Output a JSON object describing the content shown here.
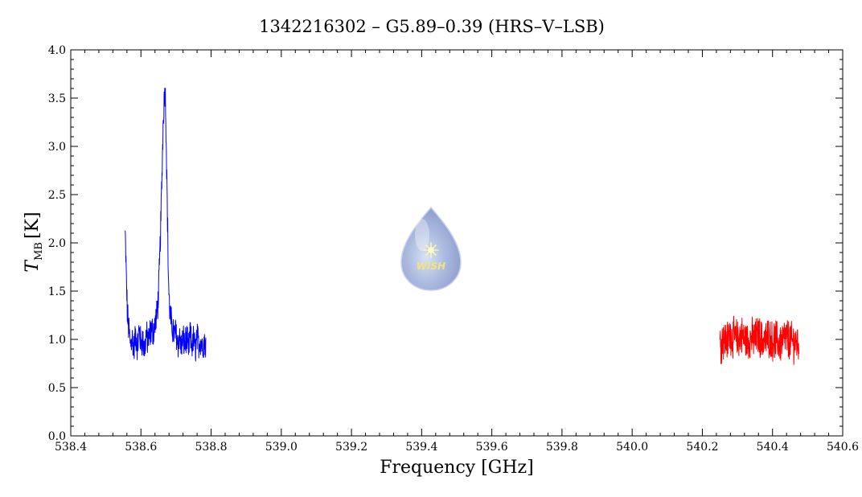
{
  "chart_data": {
    "type": "line",
    "title": "1342216302 – G5.89–0.39 (HRS–V–LSB)",
    "xlabel": "Frequency [GHz]",
    "ylabel_main": "T",
    "ylabel_sub": "MB",
    "ylabel_unit": "[K]",
    "xlim": [
      538.4,
      540.6
    ],
    "ylim": [
      0.0,
      4.0
    ],
    "xticks": [
      538.4,
      538.6,
      538.8,
      539.0,
      539.2,
      539.4,
      539.6,
      539.8,
      540.0,
      540.2,
      540.4,
      540.6
    ],
    "yticks": [
      0.0,
      0.5,
      1.0,
      1.5,
      2.0,
      2.5,
      3.0,
      3.5,
      4.0
    ],
    "xtick_labels": [
      "538.4",
      "538.6",
      "538.8",
      "539.0",
      "539.2",
      "539.4",
      "539.6",
      "539.8",
      "540.0",
      "540.2",
      "540.4",
      "540.6"
    ],
    "ytick_labels": [
      "0.0",
      "0.5",
      "1.0",
      "1.5",
      "2.0",
      "2.5",
      "3.0",
      "3.5",
      "4.0"
    ],
    "grid": false,
    "series": [
      {
        "color": "#0000ff",
        "x": [
          538.555,
          538.558,
          538.561,
          538.564,
          538.567,
          538.57,
          538.575,
          538.58,
          538.585,
          538.59,
          538.595,
          538.6,
          538.605,
          538.61,
          538.615,
          538.62,
          538.625,
          538.63,
          538.635,
          538.64,
          538.645,
          538.65,
          538.655,
          538.66,
          538.663,
          538.666,
          538.669,
          538.672,
          538.675,
          538.678,
          538.681,
          538.685,
          538.69,
          538.695,
          538.7,
          538.705,
          538.71,
          538.715,
          538.72,
          538.725,
          538.73,
          538.735,
          538.74,
          538.745,
          538.75,
          538.755,
          538.76,
          538.765,
          538.77,
          538.775,
          538.78,
          538.785
        ],
        "y": [
          2.1,
          1.7,
          1.3,
          1.15,
          1.05,
          0.95,
          1.02,
          0.9,
          1.05,
          0.92,
          1.1,
          0.95,
          1.0,
          0.88,
          1.05,
          0.98,
          1.05,
          1.1,
          1.08,
          1.15,
          1.25,
          1.45,
          2.0,
          2.7,
          3.2,
          3.5,
          3.6,
          3.1,
          2.4,
          1.7,
          1.35,
          1.2,
          1.12,
          1.05,
          1.08,
          0.95,
          1.02,
          0.92,
          1.0,
          0.95,
          1.02,
          0.88,
          1.05,
          0.93,
          1.0,
          0.9,
          1.02,
          0.95,
          1.0,
          0.92,
          0.98,
          0.95
        ]
      },
      {
        "color": "#ff0000",
        "x": [
          540.25,
          540.26,
          540.27,
          540.28,
          540.29,
          540.3,
          540.31,
          540.32,
          540.33,
          540.34,
          540.35,
          540.36,
          540.37,
          540.38,
          540.39,
          540.4,
          540.41,
          540.42,
          540.43,
          540.44,
          540.45,
          540.46,
          540.47,
          540.475
        ],
        "y": [
          0.95,
          1.0,
          0.98,
          1.05,
          1.02,
          1.0,
          1.05,
          1.0,
          0.98,
          1.02,
          1.0,
          1.05,
          0.98,
          1.0,
          1.02,
          0.98,
          1.0,
          0.95,
          1.0,
          1.02,
          0.98,
          0.97,
          0.95,
          0.96
        ]
      }
    ]
  },
  "logo": {
    "text": "WISH"
  }
}
